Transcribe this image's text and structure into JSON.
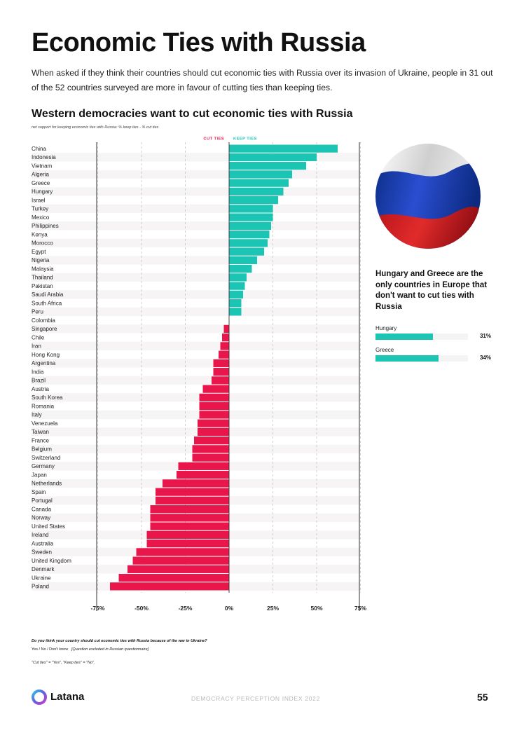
{
  "page": {
    "title": "Economic Ties with Russia",
    "intro": "When asked if they think their countries should cut economic ties with Russia over its invasion of Ukraine, people in 31 out of the 52 countries surveyed are more in favour of cutting ties than keeping ties.",
    "page_number": "55",
    "report_name": "DEMOCRACY PERCEPTION INDEX 2022",
    "brand": "Latana"
  },
  "colors": {
    "keep": "#1cc4b4",
    "cut": "#e8164b"
  },
  "chart_data": {
    "type": "bar",
    "orientation": "horizontal",
    "title": "Western democracies want to cut economic ties with Russia",
    "subtitle": "net support for keeping economic ties with Russia: % keep ties - % cut ties",
    "legend": {
      "cut": "CUT TIES",
      "keep": "KEEP TIES"
    },
    "xlim": [
      -75,
      75
    ],
    "xticks": [
      -75,
      -50,
      -25,
      0,
      25,
      50,
      75
    ],
    "xtick_labels": [
      "-75%",
      "-50%",
      "-25%",
      "0%",
      "25%",
      "50%",
      "75%"
    ],
    "categories": [
      "China",
      "Indonesia",
      "Vietnam",
      "Algeria",
      "Greece",
      "Hungary",
      "Israel",
      "Turkey",
      "Mexico",
      "Philippines",
      "Kenya",
      "Morocco",
      "Egypt",
      "Nigeria",
      "Malaysia",
      "Thailand",
      "Pakistan",
      "Saudi Arabia",
      "South Africa",
      "Peru",
      "Colombia",
      "Singapore",
      "Chile",
      "Iran",
      "Hong Kong",
      "Argentina",
      "India",
      "Brazil",
      "Austria",
      "South Korea",
      "Romania",
      "Italy",
      "Venezuela",
      "Taiwan",
      "France",
      "Belgium",
      "Switzerland",
      "Germany",
      "Japan",
      "Netherlands",
      "Spain",
      "Portugal",
      "Canada",
      "Norway",
      "United States",
      "Ireland",
      "Australia",
      "Sweden",
      "United Kingdom",
      "Denmark",
      "Ukraine",
      "Poland"
    ],
    "values": [
      62,
      50,
      44,
      36,
      34,
      31,
      28,
      25,
      25,
      24,
      23,
      22,
      20,
      16,
      13,
      10,
      9,
      8,
      7,
      7,
      0,
      -3,
      -4,
      -5,
      -6,
      -9,
      -9,
      -10,
      -15,
      -17,
      -17,
      -17,
      -18,
      -18,
      -20,
      -21,
      -21,
      -29,
      -30,
      -38,
      -42,
      -42,
      -45,
      -45,
      -45,
      -47,
      -47,
      -53,
      -55,
      -58,
      -63,
      -68
    ],
    "grid": true
  },
  "sidebar": {
    "image_alt": "waving Russian flag",
    "heading": "Hungary and Greece are the only countries in Europe that don't want to cut ties with Russia",
    "items": [
      {
        "label": "Hungary",
        "value_text": "31%",
        "value": 31
      },
      {
        "label": "Greece",
        "value_text": "34%",
        "value": 34
      }
    ]
  },
  "footnote": {
    "question": "Do you think your country should cut economic ties with Russia because of the war in Ukraine?",
    "answers": "Yes / No / Don't know",
    "note": "[Question excluded in Russian questionnaire]",
    "definition": "\"Cut ties\" = \"Yes\", \"Keep ties\" = \"No\"."
  }
}
